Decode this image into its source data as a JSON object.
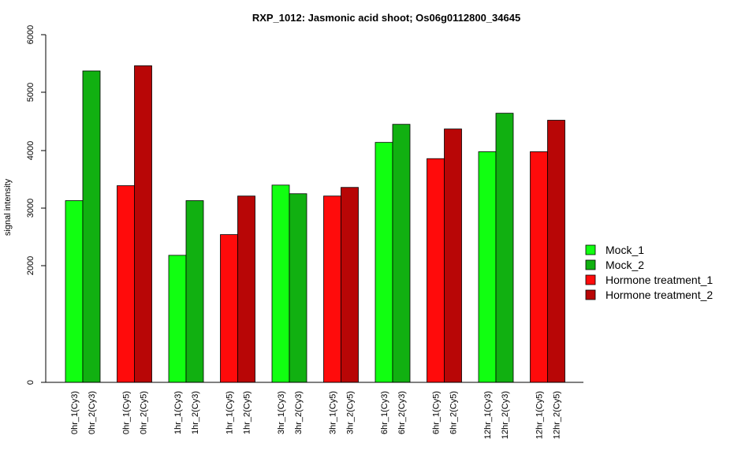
{
  "chart_data": {
    "type": "bar",
    "title": "RXP_1012: Jasmonic acid shoot; Os06g0112800_34645",
    "ylabel": "signal intensity",
    "xlabel": "",
    "y_ticks": [
      "0",
      "2000",
      "3000",
      "4000",
      "5000",
      "6000"
    ],
    "categories": [
      "0hr_1(Cy3)",
      "0hr_2(Cy3)",
      "0hr_1(Cy5)",
      "0hr_2(Cy5)",
      "1hr_1(Cy3)",
      "1hr_2(Cy3)",
      "1hr_1(Cy5)",
      "1hr_2(Cy5)",
      "3hr_1(Cy3)",
      "3hr_2(Cy3)",
      "3hr_1(Cy5)",
      "3hr_2(Cy5)",
      "6hr_1(Cy3)",
      "6hr_2(Cy3)",
      "6hr_1(Cy5)",
      "6hr_2(Cy5)",
      "12hr_1(Cy3)",
      "12hr_2(Cy3)",
      "12hr_1(Cy5)",
      "12hr_2(Cy5)"
    ],
    "values": [
      3130,
      5370,
      3390,
      5460,
      2180,
      3130,
      2540,
      3210,
      3400,
      3250,
      3210,
      3360,
      4140,
      4450,
      3860,
      4370,
      3980,
      4640,
      3980,
      4520
    ],
    "bar_series": [
      0,
      1,
      2,
      3,
      0,
      1,
      2,
      3,
      0,
      1,
      2,
      3,
      0,
      1,
      2,
      3,
      0,
      1,
      2,
      3
    ],
    "series": [
      {
        "name": "Mock_1",
        "color": "#11ff11"
      },
      {
        "name": "Mock_2",
        "color": "#11b011"
      },
      {
        "name": "Hormone treatment_1",
        "color": "#ff0b0b"
      },
      {
        "name": "Hormone treatment_2",
        "color": "#b80606"
      }
    ],
    "legend_placement": "right",
    "grid": false
  }
}
